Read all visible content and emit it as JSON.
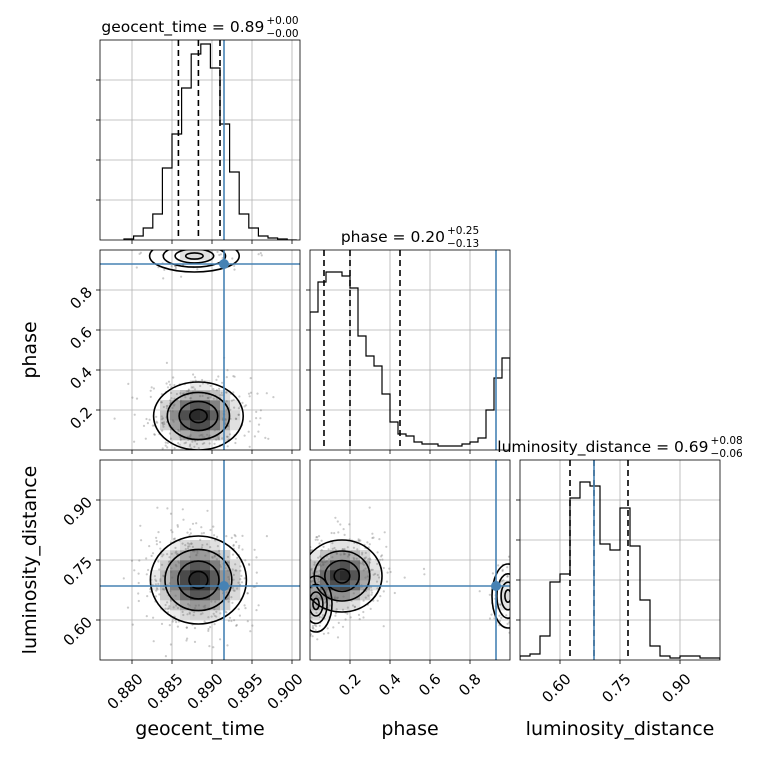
{
  "chart_data": {
    "type": "corner",
    "parameters": [
      "geocent_time",
      "phase",
      "luminosity_distance"
    ],
    "truths": {
      "geocent_time": 0.8915,
      "phase": 0.93,
      "luminosity_distance": 0.685
    },
    "colors": {
      "truth": "#4682b4",
      "hist": "#000000",
      "grid": "#b0b0b0"
    },
    "diagonal": [
      {
        "param": "geocent_time",
        "title": "geocent_time = 0.89",
        "title_sup": "+0.00",
        "title_sub": "−0.00",
        "xlim": [
          0.876,
          0.901
        ],
        "quantiles": [
          0.8858,
          0.8883,
          0.891
        ],
        "bin_edges": [
          0.879,
          0.8802,
          0.8814,
          0.8826,
          0.8838,
          0.885,
          0.8862,
          0.8874,
          0.8886,
          0.8898,
          0.891,
          0.8922,
          0.8934,
          0.8946,
          0.8958,
          0.897,
          0.8982,
          0.8994,
          0.9006
        ],
        "counts": [
          0.005,
          0.02,
          0.06,
          0.13,
          0.36,
          0.53,
          0.76,
          0.93,
          0.98,
          0.86,
          0.58,
          0.34,
          0.13,
          0.06,
          0.02,
          0.01,
          0.005,
          0.0
        ]
      },
      {
        "param": "phase",
        "title": "phase = 0.20",
        "title_sup": "+0.25",
        "title_sub": "−0.13",
        "xlim": [
          0.0,
          1.0
        ],
        "quantiles": [
          0.07,
          0.2,
          0.45
        ],
        "bin_edges": [
          0.0,
          0.04,
          0.08,
          0.12,
          0.16,
          0.2,
          0.24,
          0.28,
          0.32,
          0.36,
          0.4,
          0.44,
          0.48,
          0.52,
          0.56,
          0.6,
          0.64,
          0.68,
          0.72,
          0.76,
          0.8,
          0.84,
          0.88,
          0.92,
          0.96,
          1.0
        ],
        "counts": [
          0.69,
          0.84,
          0.89,
          0.89,
          0.87,
          0.81,
          0.57,
          0.47,
          0.42,
          0.28,
          0.14,
          0.08,
          0.07,
          0.04,
          0.03,
          0.03,
          0.02,
          0.02,
          0.02,
          0.03,
          0.04,
          0.06,
          0.2,
          0.36,
          0.46
        ]
      },
      {
        "param": "luminosity_distance",
        "title": "luminosity_distance = 0.69",
        "title_sup": "+0.08",
        "title_sub": "−0.06",
        "xlim": [
          0.5,
          1.0
        ],
        "quantiles": [
          0.625,
          0.685,
          0.77
        ],
        "bin_edges": [
          0.5,
          0.525,
          0.55,
          0.575,
          0.6,
          0.625,
          0.65,
          0.675,
          0.7,
          0.725,
          0.75,
          0.775,
          0.8,
          0.825,
          0.85,
          0.875,
          0.9,
          0.925,
          0.95,
          0.975,
          1.0
        ],
        "counts": [
          0.02,
          0.03,
          0.12,
          0.39,
          0.43,
          0.81,
          0.89,
          0.87,
          0.58,
          0.55,
          0.76,
          0.57,
          0.3,
          0.07,
          0.02,
          0.01,
          0.02,
          0.02,
          0.01,
          0.01
        ]
      }
    ],
    "panels": [
      {
        "id": "phase-vs-geocent_time",
        "x_param": "geocent_time",
        "y_param": "phase",
        "xlim": [
          0.876,
          0.901
        ],
        "ylim": [
          0.0,
          1.0
        ],
        "modes": [
          {
            "cx": 0.8883,
            "cy": 0.17,
            "sx": 0.0028,
            "sy": 0.085,
            "n": 1200
          },
          {
            "cx": 0.8878,
            "cy": 0.97,
            "sx": 0.0028,
            "sy": 0.04,
            "n": 300
          }
        ],
        "contour_levels": [
          0.39,
          0.86,
          1.39,
          2.0
        ]
      },
      {
        "id": "luminosity_distance-vs-geocent_time",
        "x_param": "geocent_time",
        "y_param": "luminosity_distance",
        "xlim": [
          0.876,
          0.901
        ],
        "ylim": [
          0.5,
          1.0
        ],
        "modes": [
          {
            "cx": 0.8883,
            "cy": 0.7,
            "sx": 0.003,
            "sy": 0.055,
            "n": 1500
          }
        ],
        "contour_levels": [
          0.39,
          0.86,
          1.39,
          2.0
        ]
      },
      {
        "id": "luminosity_distance-vs-phase",
        "x_param": "phase",
        "y_param": "luminosity_distance",
        "xlim": [
          0.0,
          1.0
        ],
        "ylim": [
          0.5,
          1.0
        ],
        "modes": [
          {
            "cx": 0.16,
            "cy": 0.71,
            "sx": 0.1,
            "sy": 0.045,
            "n": 1100
          },
          {
            "cx": 0.03,
            "cy": 0.64,
            "sx": 0.04,
            "sy": 0.035,
            "n": 350
          },
          {
            "cx": 0.99,
            "cy": 0.66,
            "sx": 0.04,
            "sy": 0.04,
            "n": 300
          }
        ],
        "contour_levels": [
          0.39,
          0.86,
          1.39,
          2.0
        ]
      }
    ],
    "axes": {
      "geocent_time": {
        "label": "geocent_time",
        "ticks": [
          0.88,
          0.885,
          0.89,
          0.895,
          0.9
        ],
        "tick_labels": [
          "0.880",
          "0.885",
          "0.890",
          "0.895",
          "0.900"
        ]
      },
      "phase": {
        "label": "phase",
        "ticks": [
          0.2,
          0.4,
          0.6,
          0.8
        ],
        "tick_labels": [
          "0.2",
          "0.4",
          "0.6",
          "0.8"
        ]
      },
      "luminosity_distance": {
        "label": "luminosity_distance",
        "ticks": [
          0.6,
          0.75,
          0.9
        ],
        "tick_labels": [
          "0.60",
          "0.75",
          "0.90"
        ]
      }
    },
    "grid": true
  }
}
